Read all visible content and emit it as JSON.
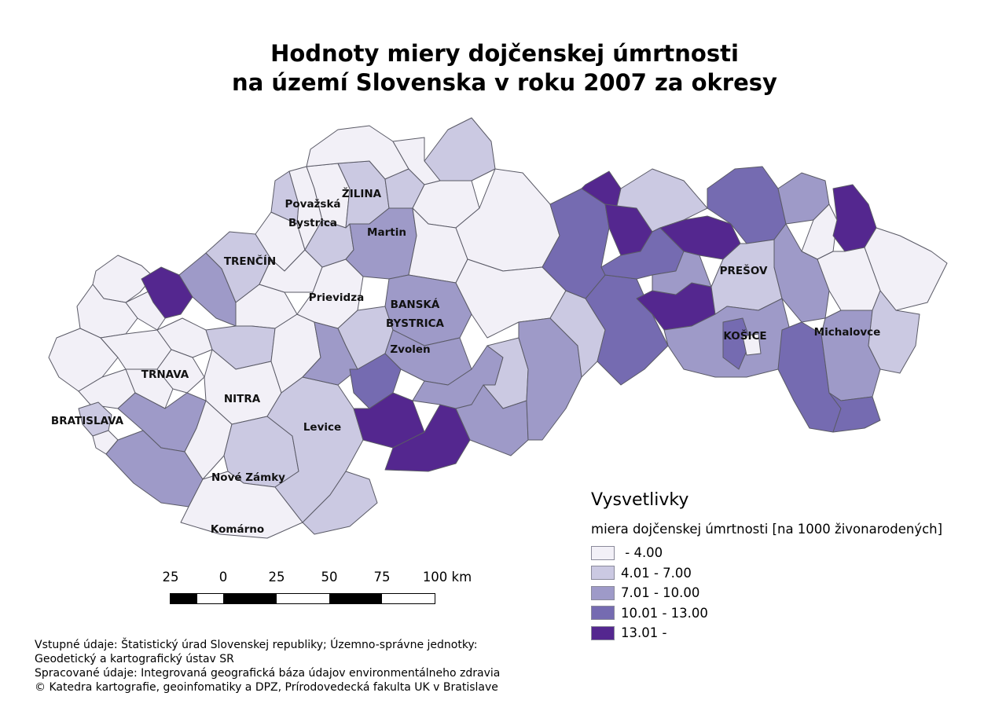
{
  "title": {
    "line1": "Hodnoty miery dojčenskej úmrtnosti",
    "line2": "na území Slovenska v roku 2007 za okresy"
  },
  "map": {
    "fill_classes": {
      "c1": "#f2f0f7",
      "c2": "#cbc9e2",
      "c3": "#9e9ac8",
      "c4": "#756bb1",
      "c5": "#54278f"
    },
    "border_color": "#5a5a66",
    "city_labels": [
      {
        "id": "zilina",
        "text": "ŽILINA"
      },
      {
        "id": "povazska1",
        "text": "Považská"
      },
      {
        "id": "povazska2",
        "text": "Bystrica"
      },
      {
        "id": "martin",
        "text": "Martin"
      },
      {
        "id": "trencin",
        "text": "TRENČÍN"
      },
      {
        "id": "prievidza",
        "text": "Prievidza"
      },
      {
        "id": "bb1",
        "text": "BANSKÁ"
      },
      {
        "id": "bb2",
        "text": "BYSTRICA"
      },
      {
        "id": "zvolen",
        "text": "Zvolen"
      },
      {
        "id": "presov",
        "text": "PREŠOV"
      },
      {
        "id": "kosice",
        "text": "KOŠICE"
      },
      {
        "id": "michalovce",
        "text": "Michalovce"
      },
      {
        "id": "trnava",
        "text": "TRNAVA"
      },
      {
        "id": "nitra",
        "text": "NITRA"
      },
      {
        "id": "bratislava",
        "text": "BRATISLAVA"
      },
      {
        "id": "levice",
        "text": "Levice"
      },
      {
        "id": "novezamky",
        "text": "Nové Zámky"
      },
      {
        "id": "komarno",
        "text": "Komárno"
      }
    ]
  },
  "legend": {
    "title": "Vysvetlivky",
    "subtitle": "miera dojčenskej úmrtnosti [na 1000 živonarodených]",
    "items": [
      {
        "label": " - 4.00",
        "color": "#f2f0f7"
      },
      {
        "label": "4.01 - 7.00",
        "color": "#cbc9e2"
      },
      {
        "label": "7.01 - 10.00",
        "color": "#9e9ac8"
      },
      {
        "label": "10.01 - 13.00",
        "color": "#756bb1"
      },
      {
        "label": "13.01 -",
        "color": "#54278f"
      }
    ]
  },
  "scale_bar": {
    "labels": [
      "25",
      "0",
      "25",
      "50",
      "75",
      "100 km"
    ]
  },
  "credits": {
    "line1": "Vstupné údaje: Štatistický úrad Slovenskej republiky; Územno-správne jednotky:",
    "line2": "Geodetický a kartografický ústav SR",
    "line3": "Spracované údaje: Integrovaná geografická báza údajov environmentálneho zdravia",
    "line4": "© Katedra kartografie, geoinfomatiky a DPZ, Prírodovedecká fakulta UK v Bratislave"
  }
}
